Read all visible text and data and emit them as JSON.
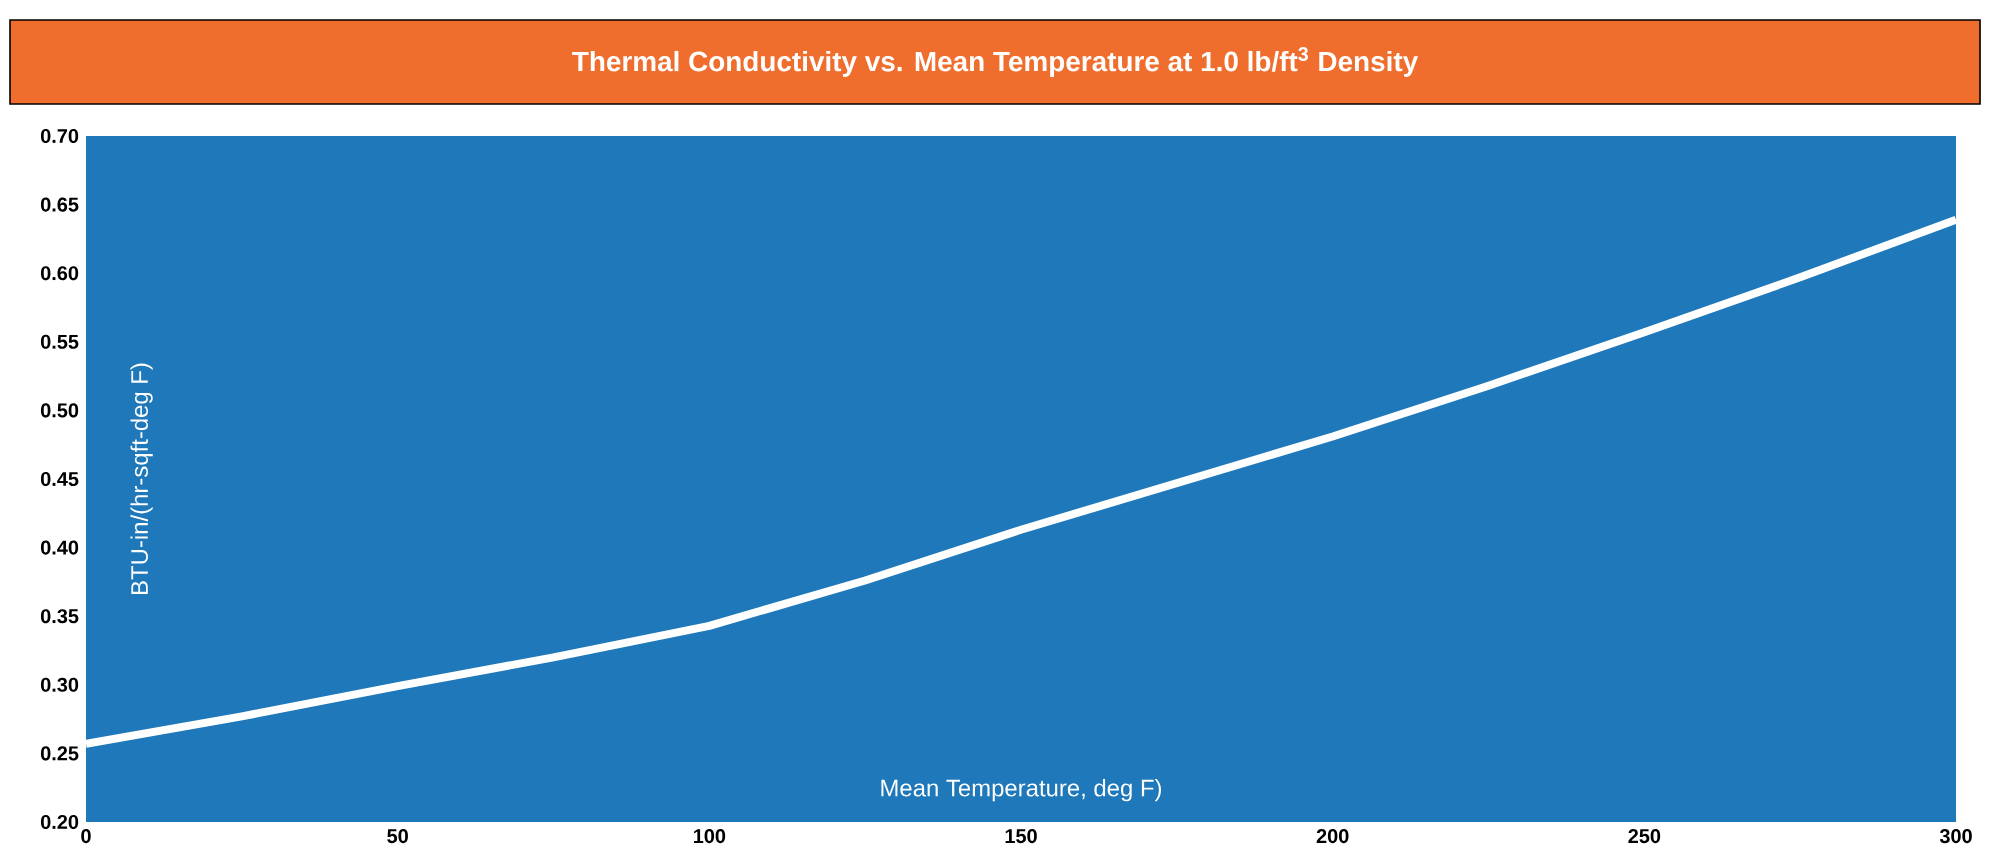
{
  "chart_data": {
    "type": "line",
    "title": "Thermal Conductivity vs. Mean Temperature at 1.0 lb/ft$^{3}$ Density",
    "xlabel": "Mean Temperature, deg F)",
    "ylabel": "BTU-in/(hr-sqft-deg F)",
    "x": [
      0,
      25,
      50,
      75,
      100,
      125,
      150,
      175,
      200,
      225,
      250,
      275,
      300
    ],
    "series": [
      {
        "color": "#ffffff",
        "values": [
          0.257,
          0.277,
          0.299,
          0.32,
          0.343,
          0.376,
          0.413,
          0.447,
          0.481,
          0.518,
          0.557,
          0.597,
          0.639
        ]
      }
    ],
    "xlim": [
      0,
      300
    ],
    "ylim": [
      0.2,
      0.7
    ],
    "xticks": [
      0,
      50,
      100,
      150,
      200,
      250,
      300
    ],
    "yticks": [
      {
        "value": 0.2,
        "label": "0.20"
      },
      {
        "value": 0.25,
        "label": "0.25"
      },
      {
        "value": 0.3,
        "label": "0.30"
      },
      {
        "value": 0.35,
        "label": "0.35"
      },
      {
        "value": 0.4,
        "label": "0.40"
      },
      {
        "value": 0.45,
        "label": "0.45"
      },
      {
        "value": 0.5,
        "label": "0.50"
      },
      {
        "value": 0.55,
        "label": "0.55"
      },
      {
        "value": 0.6,
        "label": "0.60"
      },
      {
        "value": 0.65,
        "label": "0.65"
      },
      {
        "value": 0.7,
        "label": "0.70"
      }
    ],
    "grid": false,
    "marker": "none",
    "line_style": "solid"
  }
}
